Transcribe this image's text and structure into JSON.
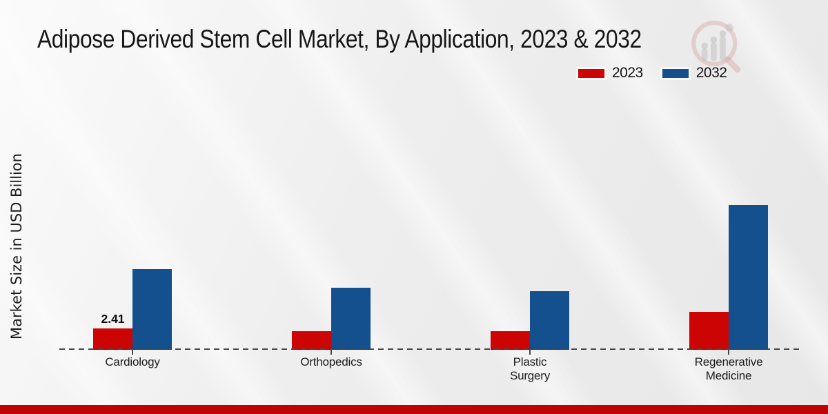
{
  "chart_data": {
    "type": "bar",
    "title": "Adipose Derived Stem Cell Market, By Application, 2023 & 2032",
    "ylabel": "Market Size in USD Billion",
    "xlabel": "",
    "categories": [
      "Cardiology",
      "Orthopedics",
      "Plastic Surgery",
      "Regenerative Medicine"
    ],
    "series": [
      {
        "name": "2023",
        "color": "#cc0404",
        "values": [
          2.41,
          2.1,
          2.1,
          4.3
        ]
      },
      {
        "name": "2032",
        "color": "#15508e",
        "values": [
          9.2,
          7.1,
          6.7,
          16.5
        ]
      }
    ],
    "value_labels": [
      [
        "2.41",
        "",
        "",
        ""
      ],
      [
        "",
        "",
        "",
        ""
      ]
    ],
    "ylim": [
      0,
      17
    ],
    "grid": false,
    "legend_position": "top-right",
    "baseline_style": "dashed",
    "baseline_color": "#474747"
  },
  "footer": {
    "bar_color": "#bf0303"
  },
  "logo": {
    "icon": "magnifier-growth-chart-watermark"
  }
}
